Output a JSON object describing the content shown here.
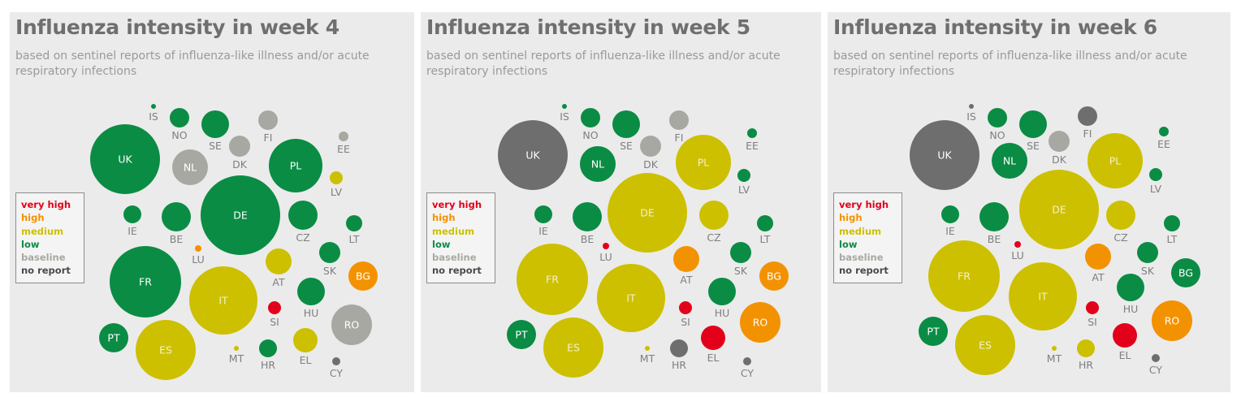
{
  "colors": {
    "very high": "#e2001a",
    "high": "#f39200",
    "medium": "#cdc000",
    "low": "#0a8c45",
    "baseline": "#a8a8a2",
    "no report": "#6e6e6e",
    "label": "#7f7f7f",
    "panel_bg": "#ebebeb"
  },
  "legend": [
    {
      "key": "very high",
      "label": "very high",
      "color": "#e2001a"
    },
    {
      "key": "high",
      "label": "high",
      "color": "#f39200"
    },
    {
      "key": "medium",
      "label": "medium",
      "color": "#cdc000"
    },
    {
      "key": "low",
      "label": "low",
      "color": "#0a8c45"
    },
    {
      "key": "baseline",
      "label": "baseline",
      "color": "#a8a8a2"
    },
    {
      "key": "no report",
      "label": "no report",
      "color": "#4a4a4a"
    }
  ],
  "chart_data": [
    {
      "type": "bubble",
      "title": "Influenza intensity in week 4",
      "subtitle": "based on sentinel reports of influenza-like illness and/or acute respiratory infections",
      "countries": [
        {
          "code": "IS",
          "intensity": "low"
        },
        {
          "code": "NO",
          "intensity": "low"
        },
        {
          "code": "SE",
          "intensity": "low"
        },
        {
          "code": "FI",
          "intensity": "baseline"
        },
        {
          "code": "DK",
          "intensity": "baseline"
        },
        {
          "code": "EE",
          "intensity": "baseline"
        },
        {
          "code": "UK",
          "intensity": "low"
        },
        {
          "code": "NL",
          "intensity": "baseline"
        },
        {
          "code": "PL",
          "intensity": "low"
        },
        {
          "code": "LV",
          "intensity": "medium"
        },
        {
          "code": "DE",
          "intensity": "low"
        },
        {
          "code": "IE",
          "intensity": "low"
        },
        {
          "code": "BE",
          "intensity": "low"
        },
        {
          "code": "CZ",
          "intensity": "low"
        },
        {
          "code": "LT",
          "intensity": "low"
        },
        {
          "code": "LU",
          "intensity": "high"
        },
        {
          "code": "SK",
          "intensity": "low"
        },
        {
          "code": "BG",
          "intensity": "high"
        },
        {
          "code": "FR",
          "intensity": "low"
        },
        {
          "code": "AT",
          "intensity": "medium"
        },
        {
          "code": "IT",
          "intensity": "medium"
        },
        {
          "code": "HU",
          "intensity": "low"
        },
        {
          "code": "RO",
          "intensity": "baseline"
        },
        {
          "code": "SI",
          "intensity": "very high"
        },
        {
          "code": "PT",
          "intensity": "low"
        },
        {
          "code": "ES",
          "intensity": "medium"
        },
        {
          "code": "MT",
          "intensity": "medium"
        },
        {
          "code": "HR",
          "intensity": "low"
        },
        {
          "code": "EL",
          "intensity": "medium"
        },
        {
          "code": "CY",
          "intensity": "no report"
        }
      ]
    },
    {
      "type": "bubble",
      "title": "Influenza intensity in week 5",
      "subtitle": "based on sentinel reports of influenza-like illness and/or acute respiratory infections",
      "countries": [
        {
          "code": "IS",
          "intensity": "low"
        },
        {
          "code": "NO",
          "intensity": "low"
        },
        {
          "code": "SE",
          "intensity": "low"
        },
        {
          "code": "FI",
          "intensity": "baseline"
        },
        {
          "code": "DK",
          "intensity": "baseline"
        },
        {
          "code": "EE",
          "intensity": "low"
        },
        {
          "code": "UK",
          "intensity": "no report"
        },
        {
          "code": "NL",
          "intensity": "low"
        },
        {
          "code": "PL",
          "intensity": "medium"
        },
        {
          "code": "LV",
          "intensity": "low"
        },
        {
          "code": "DE",
          "intensity": "medium"
        },
        {
          "code": "IE",
          "intensity": "low"
        },
        {
          "code": "BE",
          "intensity": "low"
        },
        {
          "code": "CZ",
          "intensity": "medium"
        },
        {
          "code": "LT",
          "intensity": "low"
        },
        {
          "code": "LU",
          "intensity": "very high"
        },
        {
          "code": "SK",
          "intensity": "low"
        },
        {
          "code": "BG",
          "intensity": "high"
        },
        {
          "code": "FR",
          "intensity": "medium"
        },
        {
          "code": "AT",
          "intensity": "high"
        },
        {
          "code": "IT",
          "intensity": "medium"
        },
        {
          "code": "HU",
          "intensity": "low"
        },
        {
          "code": "RO",
          "intensity": "high"
        },
        {
          "code": "SI",
          "intensity": "very high"
        },
        {
          "code": "PT",
          "intensity": "low"
        },
        {
          "code": "ES",
          "intensity": "medium"
        },
        {
          "code": "MT",
          "intensity": "medium"
        },
        {
          "code": "HR",
          "intensity": "no report"
        },
        {
          "code": "EL",
          "intensity": "very high"
        },
        {
          "code": "CY",
          "intensity": "no report"
        }
      ]
    },
    {
      "type": "bubble",
      "title": "Influenza intensity in week 6",
      "subtitle": "based on sentinel reports of influenza-like illness and/or acute respiratory infections",
      "countries": [
        {
          "code": "IS",
          "intensity": "no report"
        },
        {
          "code": "NO",
          "intensity": "low"
        },
        {
          "code": "SE",
          "intensity": "low"
        },
        {
          "code": "FI",
          "intensity": "no report"
        },
        {
          "code": "DK",
          "intensity": "baseline"
        },
        {
          "code": "EE",
          "intensity": "low"
        },
        {
          "code": "UK",
          "intensity": "no report"
        },
        {
          "code": "NL",
          "intensity": "low"
        },
        {
          "code": "PL",
          "intensity": "medium"
        },
        {
          "code": "LV",
          "intensity": "low"
        },
        {
          "code": "DE",
          "intensity": "medium"
        },
        {
          "code": "IE",
          "intensity": "low"
        },
        {
          "code": "BE",
          "intensity": "low"
        },
        {
          "code": "CZ",
          "intensity": "medium"
        },
        {
          "code": "LT",
          "intensity": "low"
        },
        {
          "code": "LU",
          "intensity": "very high"
        },
        {
          "code": "SK",
          "intensity": "low"
        },
        {
          "code": "BG",
          "intensity": "low"
        },
        {
          "code": "FR",
          "intensity": "medium"
        },
        {
          "code": "AT",
          "intensity": "high"
        },
        {
          "code": "IT",
          "intensity": "medium"
        },
        {
          "code": "HU",
          "intensity": "low"
        },
        {
          "code": "RO",
          "intensity": "high"
        },
        {
          "code": "SI",
          "intensity": "very high"
        },
        {
          "code": "PT",
          "intensity": "low"
        },
        {
          "code": "ES",
          "intensity": "medium"
        },
        {
          "code": "MT",
          "intensity": "medium"
        },
        {
          "code": "HR",
          "intensity": "medium"
        },
        {
          "code": "EL",
          "intensity": "very high"
        },
        {
          "code": "CY",
          "intensity": "no report"
        }
      ]
    }
  ]
}
